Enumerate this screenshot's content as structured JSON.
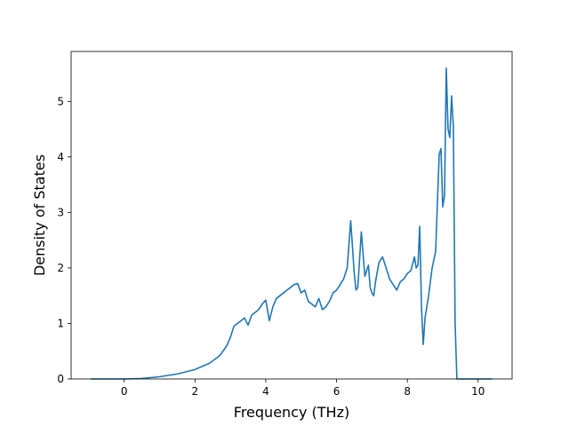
{
  "chart_data": {
    "type": "line",
    "title": "",
    "xlabel": "Frequency (THz)",
    "ylabel": "Density of States",
    "xlim": [
      -1.5,
      10.96
    ],
    "ylim": [
      0,
      5.9
    ],
    "xticks": [
      0,
      2,
      4,
      6,
      8,
      10
    ],
    "yticks": [
      0,
      1,
      2,
      3,
      4,
      5
    ],
    "grid": false,
    "line_color": "#1f77b4",
    "series": [
      {
        "x": [
          -0.95,
          0.0,
          0.5,
          1.0,
          1.5,
          2.0,
          2.4,
          2.7,
          2.9,
          3.0,
          3.1,
          3.2,
          3.3,
          3.4,
          3.5,
          3.6,
          3.7,
          3.8,
          3.9,
          4.0,
          4.1,
          4.2,
          4.3,
          4.4,
          4.5,
          4.6,
          4.7,
          4.8,
          4.9,
          5.0,
          5.1,
          5.2,
          5.3,
          5.4,
          5.5,
          5.6,
          5.7,
          5.8,
          5.9,
          6.0,
          6.1,
          6.2,
          6.3,
          6.4,
          6.5,
          6.55,
          6.6,
          6.7,
          6.8,
          6.9,
          6.95,
          7.0,
          7.05,
          7.1,
          7.2,
          7.3,
          7.4,
          7.5,
          7.6,
          7.7,
          7.8,
          7.9,
          8.0,
          8.1,
          8.2,
          8.25,
          8.3,
          8.35,
          8.4,
          8.45,
          8.5,
          8.6,
          8.7,
          8.8,
          8.9,
          8.95,
          9.0,
          9.05,
          9.1,
          9.15,
          9.2,
          9.25,
          9.3,
          9.35,
          9.4,
          9.45,
          9.5,
          9.6,
          9.8,
          10.0,
          10.4
        ],
        "y": [
          0,
          0,
          0.01,
          0.04,
          0.09,
          0.17,
          0.28,
          0.42,
          0.6,
          0.75,
          0.95,
          1.0,
          1.05,
          1.1,
          0.97,
          1.15,
          1.2,
          1.25,
          1.35,
          1.42,
          1.05,
          1.3,
          1.45,
          1.5,
          1.55,
          1.6,
          1.65,
          1.7,
          1.72,
          1.55,
          1.6,
          1.4,
          1.35,
          1.3,
          1.45,
          1.25,
          1.3,
          1.4,
          1.55,
          1.6,
          1.7,
          1.8,
          2.0,
          2.85,
          1.9,
          1.6,
          1.65,
          2.65,
          1.85,
          2.05,
          1.65,
          1.55,
          1.5,
          1.75,
          2.1,
          2.2,
          2.0,
          1.8,
          1.7,
          1.6,
          1.75,
          1.8,
          1.9,
          1.95,
          2.2,
          2.0,
          2.05,
          2.75,
          1.3,
          0.62,
          1.1,
          1.5,
          2.0,
          2.3,
          4.05,
          4.15,
          3.1,
          3.3,
          5.6,
          4.5,
          4.35,
          5.1,
          4.55,
          1.0,
          0.0,
          0.0,
          0.0,
          0.0,
          0.0,
          0.0,
          0.0
        ]
      }
    ]
  }
}
